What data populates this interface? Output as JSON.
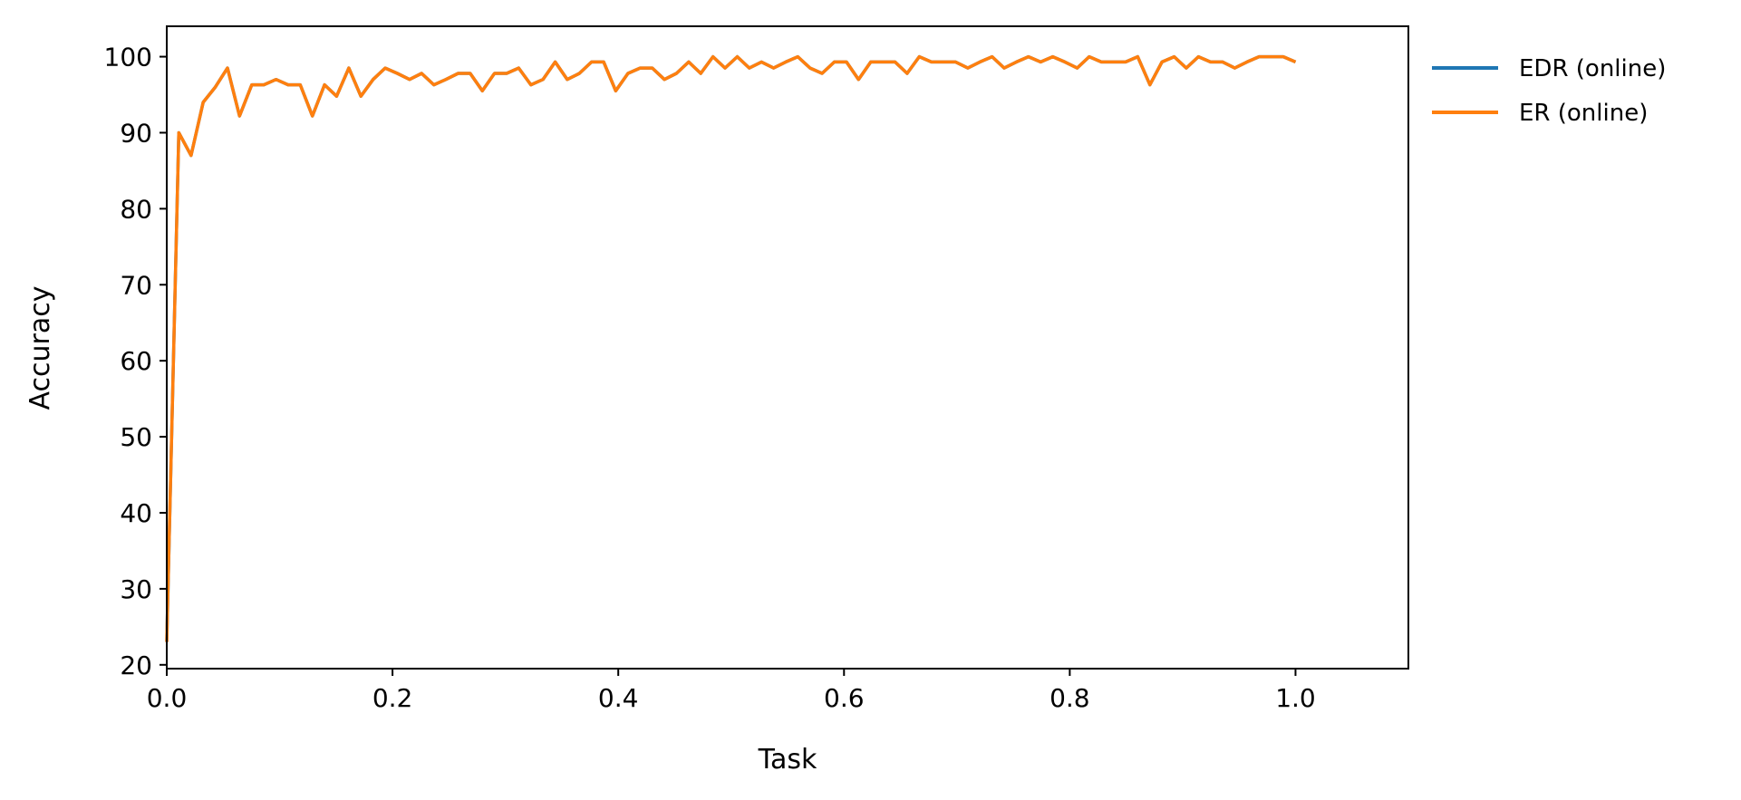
{
  "chart_data": {
    "type": "line",
    "title": "",
    "xlabel": "Task",
    "ylabel": "Accuracy",
    "xlim": [
      0.0,
      1.1
    ],
    "ylim": [
      19.5,
      104
    ],
    "xticks": [
      "0.0",
      "0.2",
      "0.4",
      "0.6",
      "0.8",
      "1.0"
    ],
    "xtick_values": [
      0.0,
      0.2,
      0.4,
      0.6,
      0.8,
      1.0
    ],
    "yticks": [
      "20",
      "30",
      "40",
      "50",
      "60",
      "70",
      "80",
      "90",
      "100"
    ],
    "ytick_values": [
      20,
      30,
      40,
      50,
      60,
      70,
      80,
      90,
      100
    ],
    "grid": false,
    "legend_position": "outside-top-right",
    "series": [
      {
        "name": "EDR (online)",
        "color": "#1f77b4",
        "x": [
          0.0,
          0.0107,
          0.0215,
          0.0323,
          0.043,
          0.0538,
          0.0645,
          0.0753,
          0.086,
          0.0968,
          0.1075,
          0.1183,
          0.129,
          0.1398,
          0.1505,
          0.1613,
          0.172,
          0.1828,
          0.1935,
          0.2043,
          0.2151,
          0.2258,
          0.2366,
          0.2473,
          0.2581,
          0.2688,
          0.2796,
          0.2903,
          0.3011,
          0.3118,
          0.3226,
          0.3333,
          0.3441,
          0.3548,
          0.3656,
          0.3763,
          0.3871,
          0.3978,
          0.4086,
          0.4194,
          0.4301,
          0.4409,
          0.4516,
          0.4624,
          0.4731,
          0.4839,
          0.4946,
          0.5054,
          0.5161,
          0.5269,
          0.5376,
          0.5484,
          0.5591,
          0.5699,
          0.5806,
          0.5914,
          0.6022,
          0.6129,
          0.6237,
          0.6344,
          0.6452,
          0.6559,
          0.6667,
          0.6774,
          0.6882,
          0.6989,
          0.7097,
          0.7204,
          0.7312,
          0.7419,
          0.7527,
          0.7634,
          0.7742,
          0.7849,
          0.7957,
          0.8065,
          0.8172,
          0.828,
          0.8387,
          0.8495,
          0.8602,
          0.871,
          0.8817,
          0.8925,
          0.9032,
          0.914,
          0.9247,
          0.9355,
          0.9462,
          0.957,
          0.9677,
          0.9785,
          0.9892,
          1.0
        ],
        "y": [
          23,
          90,
          87,
          94,
          96,
          98.5,
          92.2,
          96.3,
          96.3,
          97,
          96.3,
          96.3,
          92.2,
          96.3,
          94.8,
          98.5,
          94.8,
          97,
          98.5,
          97.8,
          97,
          97.8,
          96.3,
          97,
          97.8,
          97.8,
          95.5,
          97.8,
          97.8,
          98.5,
          96.3,
          97,
          99.3,
          97,
          97.8,
          99.3,
          99.3,
          95.5,
          97.8,
          98.5,
          98.5,
          97,
          97.8,
          99.3,
          97.8,
          100,
          98.5,
          100,
          98.5,
          99.3,
          98.5,
          99.3,
          100,
          98.5,
          97.8,
          99.3,
          99.3,
          97,
          99.3,
          99.3,
          99.3,
          97.8,
          100,
          99.3,
          99.3,
          99.3,
          98.5,
          99.3,
          100,
          98.5,
          99.3,
          100,
          99.3,
          100,
          99.3,
          98.5,
          100,
          99.3,
          99.3,
          99.3,
          100,
          96.3,
          99.3,
          100,
          98.5,
          100,
          99.3,
          99.3,
          98.5,
          99.3,
          100,
          100,
          100,
          99.3
        ]
      },
      {
        "name": "ER (online)",
        "color": "#ff7f0e",
        "x": [
          0.0,
          0.0107,
          0.0215,
          0.0323,
          0.043,
          0.0538,
          0.0645,
          0.0753,
          0.086,
          0.0968,
          0.1075,
          0.1183,
          0.129,
          0.1398,
          0.1505,
          0.1613,
          0.172,
          0.1828,
          0.1935,
          0.2043,
          0.2151,
          0.2258,
          0.2366,
          0.2473,
          0.2581,
          0.2688,
          0.2796,
          0.2903,
          0.3011,
          0.3118,
          0.3226,
          0.3333,
          0.3441,
          0.3548,
          0.3656,
          0.3763,
          0.3871,
          0.3978,
          0.4086,
          0.4194,
          0.4301,
          0.4409,
          0.4516,
          0.4624,
          0.4731,
          0.4839,
          0.4946,
          0.5054,
          0.5161,
          0.5269,
          0.5376,
          0.5484,
          0.5591,
          0.5699,
          0.5806,
          0.5914,
          0.6022,
          0.6129,
          0.6237,
          0.6344,
          0.6452,
          0.6559,
          0.6667,
          0.6774,
          0.6882,
          0.6989,
          0.7097,
          0.7204,
          0.7312,
          0.7419,
          0.7527,
          0.7634,
          0.7742,
          0.7849,
          0.7957,
          0.8065,
          0.8172,
          0.828,
          0.8387,
          0.8495,
          0.8602,
          0.871,
          0.8817,
          0.8925,
          0.9032,
          0.914,
          0.9247,
          0.9355,
          0.9462,
          0.957,
          0.9677,
          0.9785,
          0.9892,
          1.0
        ],
        "y": [
          23,
          90,
          87,
          94,
          96,
          98.5,
          92.2,
          96.3,
          96.3,
          97,
          96.3,
          96.3,
          92.2,
          96.3,
          94.8,
          98.5,
          94.8,
          97,
          98.5,
          97.8,
          97,
          97.8,
          96.3,
          97,
          97.8,
          97.8,
          95.5,
          97.8,
          97.8,
          98.5,
          96.3,
          97,
          99.3,
          97,
          97.8,
          99.3,
          99.3,
          95.5,
          97.8,
          98.5,
          98.5,
          97,
          97.8,
          99.3,
          97.8,
          100,
          98.5,
          100,
          98.5,
          99.3,
          98.5,
          99.3,
          100,
          98.5,
          97.8,
          99.3,
          99.3,
          97,
          99.3,
          99.3,
          99.3,
          97.8,
          100,
          99.3,
          99.3,
          99.3,
          98.5,
          99.3,
          100,
          98.5,
          99.3,
          100,
          99.3,
          100,
          99.3,
          98.5,
          100,
          99.3,
          99.3,
          99.3,
          100,
          96.3,
          99.3,
          100,
          98.5,
          100,
          99.3,
          99.3,
          98.5,
          99.3,
          100,
          100,
          100,
          99.3
        ]
      }
    ]
  }
}
